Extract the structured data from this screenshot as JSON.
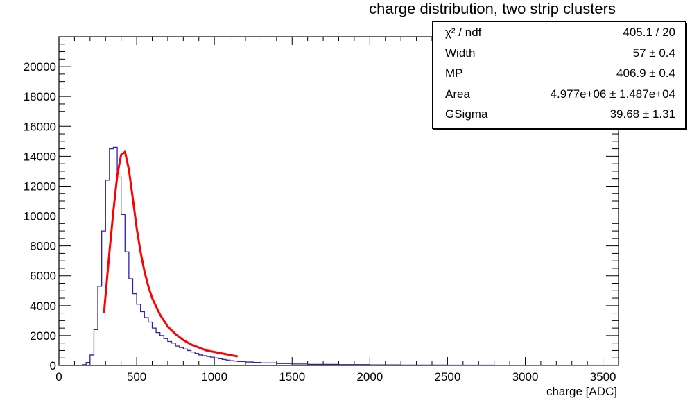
{
  "chart_data": {
    "type": "histogram",
    "title": "charge distribution, two strip clusters",
    "xlabel": "charge [ADC]",
    "ylabel": "",
    "xlim": [
      0,
      3600
    ],
    "ylim": [
      0,
      22000
    ],
    "x_ticks": [
      0,
      500,
      1000,
      1500,
      2000,
      2500,
      3000,
      3500
    ],
    "y_ticks": [
      0,
      2000,
      4000,
      6000,
      8000,
      10000,
      12000,
      14000,
      16000,
      18000,
      20000
    ],
    "bin_width": 25,
    "histogram": {
      "bin_starts": [
        150,
        175,
        200,
        225,
        250,
        275,
        300,
        325,
        350,
        375,
        400,
        425,
        450,
        475,
        500,
        525,
        550,
        575,
        600,
        625,
        650,
        675,
        700,
        725,
        750,
        775,
        800,
        825,
        850,
        875,
        900,
        925,
        950,
        975,
        1000,
        1025,
        1050,
        1075,
        1100,
        1125,
        1150,
        1200,
        1250,
        1300,
        1400,
        1500,
        1600,
        1800,
        2000,
        2200,
        2500,
        2800,
        3100,
        3400
      ],
      "counts": [
        50,
        200,
        700,
        2400,
        5300,
        9000,
        12400,
        14500,
        14600,
        12600,
        10100,
        7600,
        5800,
        4800,
        4100,
        3600,
        3200,
        2900,
        2500,
        2200,
        2000,
        1800,
        1600,
        1500,
        1300,
        1200,
        1100,
        1000,
        900,
        800,
        700,
        650,
        600,
        550,
        500,
        450,
        400,
        360,
        320,
        290,
        260,
        230,
        200,
        170,
        130,
        100,
        75,
        55,
        40,
        30,
        20,
        15,
        10,
        5
      ],
      "color": "#2a1fb5"
    },
    "fit": {
      "x": [
        290,
        300,
        325,
        350,
        375,
        400,
        425,
        450,
        475,
        500,
        525,
        550,
        575,
        600,
        650,
        700,
        750,
        800,
        850,
        900,
        950,
        1000,
        1050,
        1100,
        1150
      ],
      "y": [
        3500,
        4700,
        7600,
        10300,
        12700,
        14100,
        14300,
        13100,
        11200,
        9200,
        7600,
        6300,
        5300,
        4500,
        3400,
        2600,
        2100,
        1700,
        1400,
        1200,
        1000,
        900,
        800,
        700,
        600
      ],
      "color": "#ff0000"
    },
    "stats": [
      {
        "label": "χ² / ndf",
        "value": "405.1 / 20"
      },
      {
        "label": "Width",
        "value": "57 ± 0.4"
      },
      {
        "label": "MP",
        "value": "406.9 ± 0.4"
      },
      {
        "label": "Area",
        "value": "4.977e+06 ± 1.487e+04"
      },
      {
        "label": "GSigma",
        "value": "39.68 ± 1.31"
      }
    ]
  }
}
